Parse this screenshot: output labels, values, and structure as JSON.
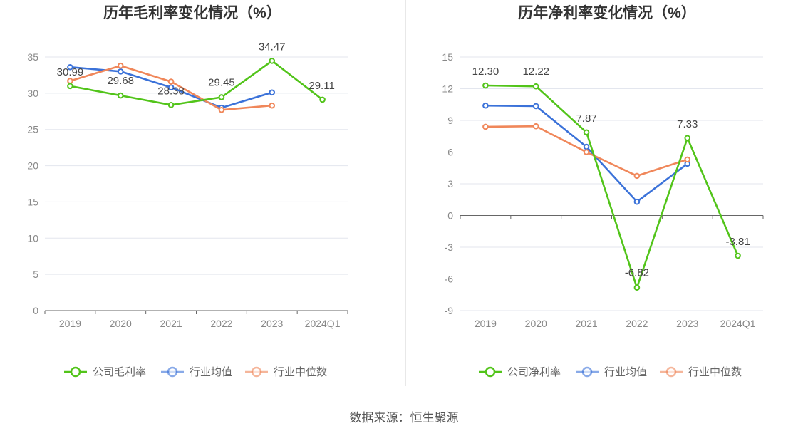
{
  "colors": {
    "company": "#52c41a",
    "industry_avg": "#3b72d9",
    "industry_median": "#f0875a",
    "grid": "#e3e6ee",
    "axis": "#666666",
    "divider": "#e8e8e8"
  },
  "source": "数据来源：恒生聚源",
  "chart_data": [
    {
      "type": "line",
      "title": "历年毛利率变化情况（%）",
      "categories": [
        "2019",
        "2020",
        "2021",
        "2022",
        "2023",
        "2024Q1"
      ],
      "ylim": [
        0,
        35
      ],
      "yticks": [
        0,
        5,
        10,
        15,
        20,
        25,
        30,
        35
      ],
      "grid": true,
      "legend_position": "bottom",
      "series": [
        {
          "name": "公司毛利率",
          "color_key": "company",
          "values": [
            30.99,
            29.68,
            28.38,
            29.45,
            34.47,
            29.11
          ],
          "labels": [
            "30.99",
            "29.68",
            "28.38",
            "29.45",
            "34.47",
            "29.11"
          ]
        },
        {
          "name": "行业均值",
          "color_key": "industry_avg",
          "values": [
            33.6,
            33.0,
            30.8,
            28.0,
            30.1,
            null
          ]
        },
        {
          "name": "行业中位数",
          "color_key": "industry_median",
          "values": [
            31.7,
            33.8,
            31.6,
            27.7,
            28.3,
            null
          ]
        }
      ]
    },
    {
      "type": "line",
      "title": "历年净利率变化情况（%）",
      "categories": [
        "2019",
        "2020",
        "2021",
        "2022",
        "2023",
        "2024Q1"
      ],
      "ylim": [
        -9,
        15
      ],
      "yticks": [
        -9,
        -6,
        -3,
        0,
        3,
        6,
        9,
        12,
        15
      ],
      "grid": true,
      "legend_position": "bottom",
      "series": [
        {
          "name": "公司净利率",
          "color_key": "company",
          "values": [
            12.3,
            12.22,
            7.87,
            -6.82,
            7.33,
            -3.81
          ],
          "labels": [
            "12.30",
            "12.22",
            "7.87",
            "-6.82",
            "7.33",
            "-3.81"
          ]
        },
        {
          "name": "行业均值",
          "color_key": "industry_avg",
          "values": [
            10.4,
            10.35,
            6.5,
            1.3,
            4.9,
            null
          ]
        },
        {
          "name": "行业中位数",
          "color_key": "industry_median",
          "values": [
            8.4,
            8.45,
            6.0,
            3.75,
            5.3,
            null
          ]
        }
      ]
    }
  ]
}
